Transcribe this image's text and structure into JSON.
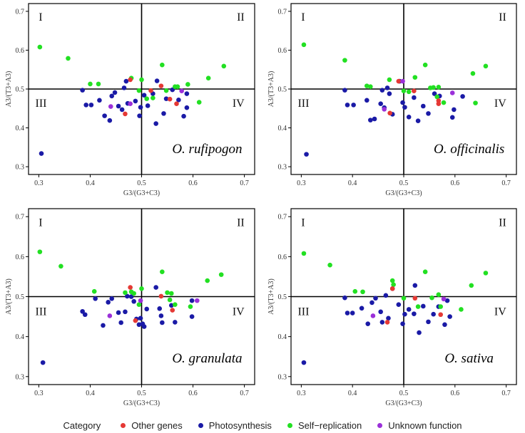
{
  "figure": {
    "legend_title": "Category",
    "categories": [
      {
        "key": "other",
        "label": "Other genes",
        "color": "#e53935"
      },
      {
        "key": "photo",
        "label": "Photosynthesis",
        "color": "#1a1aa6"
      },
      {
        "key": "self",
        "label": "Self−replication",
        "color": "#22e022"
      },
      {
        "key": "unknown",
        "label": "Unknown function",
        "color": "#9b30d9"
      }
    ],
    "quadrant_labels": [
      "I",
      "II",
      "III",
      "IV"
    ]
  },
  "chart_data": [
    {
      "type": "scatter",
      "title": "O. rufipogon",
      "xlabel": "G3/(G3+C3)",
      "ylabel": "A3/(T3+A3)",
      "xlim": [
        0.28,
        0.72
      ],
      "ylim": [
        0.28,
        0.72
      ],
      "xticks": [
        "0.3",
        "0.4",
        "0.5",
        "0.6",
        "0.7"
      ],
      "yticks": [
        "0.3",
        "0.4",
        "0.5",
        "0.6",
        "0.7"
      ],
      "reference_lines": {
        "x": 0.5,
        "y": 0.5
      },
      "points": {
        "other": [
          [
            0.478,
            0.524
          ],
          [
            0.518,
            0.496
          ],
          [
            0.538,
            0.508
          ],
          [
            0.555,
            0.474
          ],
          [
            0.568,
            0.462
          ],
          [
            0.468,
            0.436
          ]
        ],
        "photo": [
          [
            0.305,
            0.334
          ],
          [
            0.385,
            0.497
          ],
          [
            0.392,
            0.459
          ],
          [
            0.402,
            0.459
          ],
          [
            0.418,
            0.471
          ],
          [
            0.428,
            0.431
          ],
          [
            0.438,
            0.419
          ],
          [
            0.442,
            0.482
          ],
          [
            0.448,
            0.491
          ],
          [
            0.455,
            0.456
          ],
          [
            0.462,
            0.447
          ],
          [
            0.466,
            0.503
          ],
          [
            0.47,
            0.52
          ],
          [
            0.473,
            0.463
          ],
          [
            0.488,
            0.469
          ],
          [
            0.496,
            0.431
          ],
          [
            0.498,
            0.453
          ],
          [
            0.505,
            0.484
          ],
          [
            0.512,
            0.457
          ],
          [
            0.522,
            0.488
          ],
          [
            0.528,
            0.411
          ],
          [
            0.53,
            0.521
          ],
          [
            0.543,
            0.437
          ],
          [
            0.548,
            0.475
          ],
          [
            0.56,
            0.498
          ],
          [
            0.572,
            0.472
          ],
          [
            0.582,
            0.43
          ],
          [
            0.588,
            0.452
          ],
          [
            0.588,
            0.488
          ]
        ],
        "self": [
          [
            0.302,
            0.608
          ],
          [
            0.357,
            0.579
          ],
          [
            0.4,
            0.513
          ],
          [
            0.416,
            0.513
          ],
          [
            0.48,
            0.528
          ],
          [
            0.495,
            0.496
          ],
          [
            0.5,
            0.524
          ],
          [
            0.51,
            0.475
          ],
          [
            0.522,
            0.477
          ],
          [
            0.54,
            0.562
          ],
          [
            0.548,
            0.496
          ],
          [
            0.565,
            0.506
          ],
          [
            0.57,
            0.506
          ],
          [
            0.59,
            0.512
          ],
          [
            0.612,
            0.466
          ],
          [
            0.63,
            0.528
          ],
          [
            0.66,
            0.559
          ]
        ],
        "unknown": [
          [
            0.44,
            0.455
          ],
          [
            0.478,
            0.462
          ],
          [
            0.578,
            0.495
          ]
        ]
      }
    },
    {
      "type": "scatter",
      "title": "O. officinalis",
      "xlabel": "G3/(G3+C3)",
      "ylabel": "A3/(T3+A3)",
      "xlim": [
        0.28,
        0.72
      ],
      "ylim": [
        0.28,
        0.72
      ],
      "xticks": [
        "0.3",
        "0.4",
        "0.5",
        "0.6",
        "0.7"
      ],
      "yticks": [
        "0.3",
        "0.4",
        "0.5",
        "0.6",
        "0.7"
      ],
      "reference_lines": {
        "x": 0.5,
        "y": 0.5
      },
      "points": {
        "other": [
          [
            0.473,
            0.438
          ],
          [
            0.49,
            0.52
          ],
          [
            0.52,
            0.495
          ],
          [
            0.568,
            0.47
          ],
          [
            0.568,
            0.462
          ]
        ],
        "photo": [
          [
            0.31,
            0.332
          ],
          [
            0.385,
            0.497
          ],
          [
            0.39,
            0.459
          ],
          [
            0.402,
            0.459
          ],
          [
            0.428,
            0.471
          ],
          [
            0.435,
            0.42
          ],
          [
            0.443,
            0.423
          ],
          [
            0.455,
            0.462
          ],
          [
            0.458,
            0.497
          ],
          [
            0.462,
            0.452
          ],
          [
            0.468,
            0.503
          ],
          [
            0.472,
            0.488
          ],
          [
            0.478,
            0.435
          ],
          [
            0.492,
            0.52
          ],
          [
            0.498,
            0.465
          ],
          [
            0.502,
            0.453
          ],
          [
            0.51,
            0.428
          ],
          [
            0.52,
            0.478
          ],
          [
            0.528,
            0.418
          ],
          [
            0.538,
            0.456
          ],
          [
            0.548,
            0.437
          ],
          [
            0.56,
            0.488
          ],
          [
            0.57,
            0.482
          ],
          [
            0.595,
            0.427
          ],
          [
            0.598,
            0.447
          ],
          [
            0.615,
            0.481
          ]
        ],
        "self": [
          [
            0.305,
            0.614
          ],
          [
            0.385,
            0.574
          ],
          [
            0.428,
            0.508
          ],
          [
            0.435,
            0.506
          ],
          [
            0.472,
            0.524
          ],
          [
            0.5,
            0.495
          ],
          [
            0.51,
            0.493
          ],
          [
            0.522,
            0.53
          ],
          [
            0.542,
            0.562
          ],
          [
            0.552,
            0.503
          ],
          [
            0.558,
            0.504
          ],
          [
            0.565,
            0.48
          ],
          [
            0.568,
            0.505
          ],
          [
            0.578,
            0.465
          ],
          [
            0.635,
            0.54
          ],
          [
            0.64,
            0.464
          ],
          [
            0.66,
            0.559
          ]
        ],
        "unknown": [
          [
            0.462,
            0.448
          ],
          [
            0.498,
            0.52
          ],
          [
            0.595,
            0.49
          ]
        ]
      }
    },
    {
      "type": "scatter",
      "title": "O. granulata",
      "xlabel": "G3/(G3+C3)",
      "ylabel": "A3/(T3+A3)",
      "xlim": [
        0.28,
        0.72
      ],
      "ylim": [
        0.28,
        0.72
      ],
      "xticks": [
        "0.3",
        "0.4",
        "0.5",
        "0.6",
        "0.7"
      ],
      "yticks": [
        "0.3",
        "0.4",
        "0.5",
        "0.6",
        "0.7"
      ],
      "reference_lines": {
        "x": 0.5,
        "y": 0.5
      },
      "points": {
        "other": [
          [
            0.478,
            0.523
          ],
          [
            0.488,
            0.44
          ],
          [
            0.538,
            0.501
          ],
          [
            0.56,
            0.466
          ]
        ],
        "photo": [
          [
            0.308,
            0.335
          ],
          [
            0.385,
            0.463
          ],
          [
            0.39,
            0.455
          ],
          [
            0.41,
            0.495
          ],
          [
            0.425,
            0.428
          ],
          [
            0.435,
            0.486
          ],
          [
            0.442,
            0.495
          ],
          [
            0.455,
            0.46
          ],
          [
            0.46,
            0.435
          ],
          [
            0.468,
            0.462
          ],
          [
            0.472,
            0.501
          ],
          [
            0.48,
            0.5
          ],
          [
            0.485,
            0.488
          ],
          [
            0.49,
            0.444
          ],
          [
            0.495,
            0.43
          ],
          [
            0.498,
            0.446
          ],
          [
            0.502,
            0.432
          ],
          [
            0.505,
            0.425
          ],
          [
            0.51,
            0.469
          ],
          [
            0.528,
            0.523
          ],
          [
            0.535,
            0.47
          ],
          [
            0.538,
            0.452
          ],
          [
            0.54,
            0.435
          ],
          [
            0.558,
            0.478
          ],
          [
            0.565,
            0.436
          ],
          [
            0.598,
            0.45
          ],
          [
            0.598,
            0.49
          ]
        ],
        "self": [
          [
            0.302,
            0.612
          ],
          [
            0.343,
            0.576
          ],
          [
            0.408,
            0.513
          ],
          [
            0.468,
            0.51
          ],
          [
            0.48,
            0.512
          ],
          [
            0.485,
            0.508
          ],
          [
            0.495,
            0.48
          ],
          [
            0.5,
            0.52
          ],
          [
            0.54,
            0.562
          ],
          [
            0.55,
            0.51
          ],
          [
            0.555,
            0.492
          ],
          [
            0.558,
            0.508
          ],
          [
            0.565,
            0.48
          ],
          [
            0.595,
            0.475
          ],
          [
            0.628,
            0.54
          ],
          [
            0.655,
            0.555
          ]
        ],
        "unknown": [
          [
            0.438,
            0.452
          ],
          [
            0.498,
            0.49
          ],
          [
            0.608,
            0.49
          ]
        ]
      }
    },
    {
      "type": "scatter",
      "title": "O. sativa",
      "xlabel": "G3/(G3+C3)",
      "ylabel": "A3/(T3+A3)",
      "xlim": [
        0.28,
        0.72
      ],
      "ylim": [
        0.28,
        0.72
      ],
      "xticks": [
        "0.3",
        "0.4",
        "0.5",
        "0.6",
        "0.7"
      ],
      "yticks": [
        "0.3",
        "0.4",
        "0.5",
        "0.6",
        "0.7"
      ],
      "reference_lines": {
        "x": 0.5,
        "y": 0.5
      },
      "points": {
        "other": [
          [
            0.468,
            0.436
          ],
          [
            0.478,
            0.52
          ],
          [
            0.522,
            0.496
          ],
          [
            0.572,
            0.455
          ]
        ],
        "photo": [
          [
            0.305,
            0.335
          ],
          [
            0.385,
            0.497
          ],
          [
            0.39,
            0.459
          ],
          [
            0.4,
            0.459
          ],
          [
            0.418,
            0.471
          ],
          [
            0.43,
            0.432
          ],
          [
            0.438,
            0.485
          ],
          [
            0.445,
            0.496
          ],
          [
            0.455,
            0.462
          ],
          [
            0.458,
            0.436
          ],
          [
            0.465,
            0.503
          ],
          [
            0.47,
            0.446
          ],
          [
            0.478,
            0.52
          ],
          [
            0.49,
            0.48
          ],
          [
            0.498,
            0.432
          ],
          [
            0.502,
            0.456
          ],
          [
            0.51,
            0.468
          ],
          [
            0.52,
            0.457
          ],
          [
            0.522,
            0.528
          ],
          [
            0.53,
            0.41
          ],
          [
            0.538,
            0.476
          ],
          [
            0.548,
            0.437
          ],
          [
            0.558,
            0.456
          ],
          [
            0.568,
            0.475
          ],
          [
            0.58,
            0.43
          ],
          [
            0.585,
            0.49
          ],
          [
            0.59,
            0.45
          ]
        ],
        "self": [
          [
            0.305,
            0.608
          ],
          [
            0.356,
            0.579
          ],
          [
            0.405,
            0.513
          ],
          [
            0.42,
            0.512
          ],
          [
            0.478,
            0.54
          ],
          [
            0.48,
            0.53
          ],
          [
            0.5,
            0.496
          ],
          [
            0.528,
            0.475
          ],
          [
            0.542,
            0.562
          ],
          [
            0.555,
            0.497
          ],
          [
            0.568,
            0.505
          ],
          [
            0.572,
            0.475
          ],
          [
            0.612,
            0.468
          ],
          [
            0.632,
            0.528
          ],
          [
            0.66,
            0.559
          ]
        ],
        "unknown": [
          [
            0.44,
            0.452
          ],
          [
            0.578,
            0.494
          ]
        ]
      }
    }
  ]
}
